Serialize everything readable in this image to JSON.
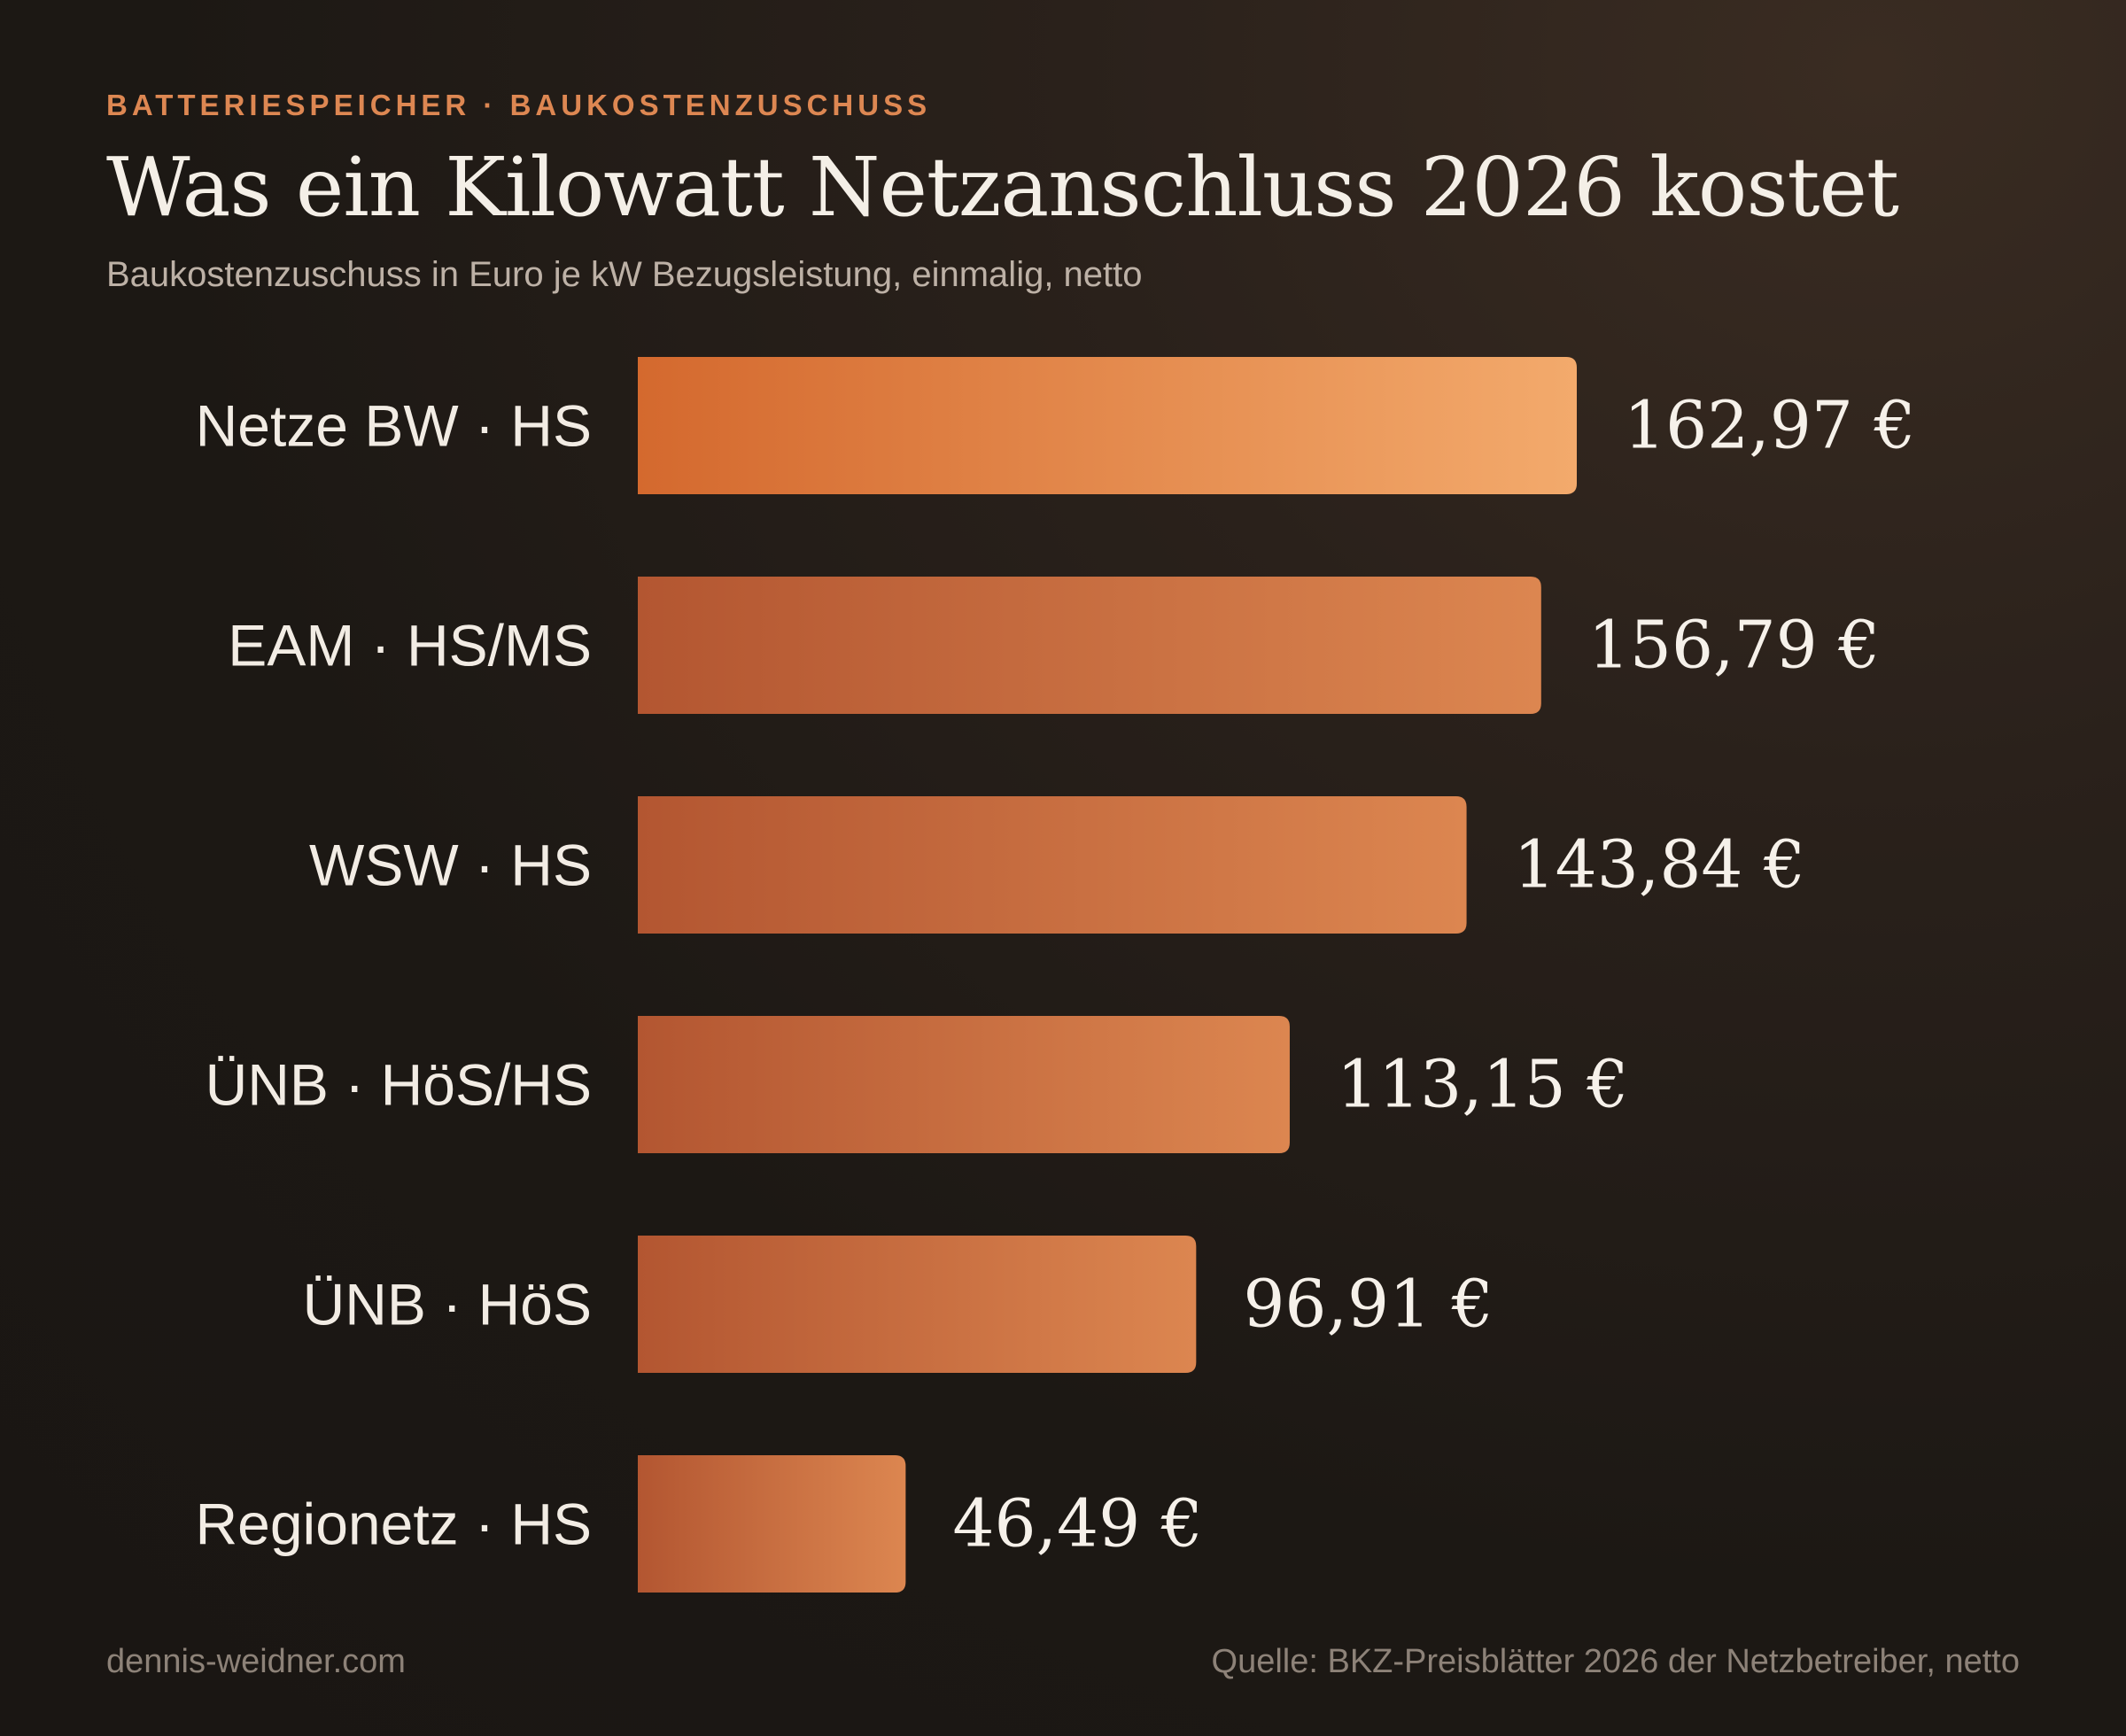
{
  "header": {
    "eyebrow": "BATTERIESPEICHER · BAUKOSTENZUSCHUSS",
    "title": "Was ein Kilowatt Netzanschluss 2026 kostet",
    "subtitle": "Baukostenzuschuss in Euro je kW Bezugsleistung, einmalig, netto"
  },
  "footer": {
    "site": "dennis-weidner.com",
    "source": "Quelle: BKZ-Preisblätter 2026 der Netzbetreiber, netto"
  },
  "colors": {
    "bar_highlight_start": "#d4692e",
    "bar_highlight_end": "#f3aa6c",
    "bar_start": "#b35631",
    "bar_end": "#dc8650",
    "label": "#f2ece4",
    "value": "#f6f1ea"
  },
  "chart_data": {
    "type": "bar",
    "orientation": "horizontal",
    "categories": [
      "Netze BW · HS",
      "EAM · HS/MS",
      "WSW · HS",
      "ÜNB · HöS/HS",
      "ÜNB · HöS",
      "Regionetz · HS"
    ],
    "values": [
      162.97,
      156.79,
      143.84,
      113.15,
      96.91,
      46.49
    ],
    "value_labels": [
      "162,97 €",
      "156,79 €",
      "143,84 €",
      "113,15 €",
      "96,91 €",
      "46,49 €"
    ],
    "highlight_index": 0,
    "xlim": [
      0,
      162.97
    ],
    "grid": false,
    "legend": "none"
  }
}
